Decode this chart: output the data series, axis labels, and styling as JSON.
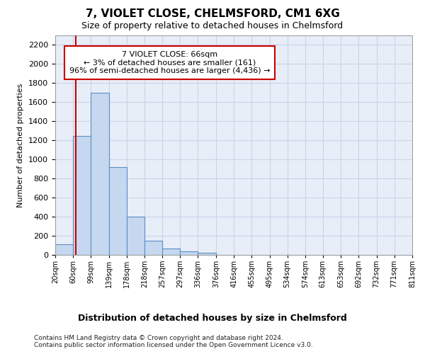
{
  "title": "7, VIOLET CLOSE, CHELMSFORD, CM1 6XG",
  "subtitle": "Size of property relative to detached houses in Chelmsford",
  "xlabel_bottom": "Distribution of detached houses by size in Chelmsford",
  "ylabel": "Number of detached properties",
  "footer_line1": "Contains HM Land Registry data © Crown copyright and database right 2024.",
  "footer_line2": "Contains public sector information licensed under the Open Government Licence v3.0.",
  "bin_edges": [
    20,
    60,
    99,
    139,
    178,
    218,
    257,
    297,
    336,
    376,
    416,
    455,
    495,
    534,
    574,
    613,
    653,
    692,
    732,
    771,
    811
  ],
  "bar_heights": [
    115,
    1250,
    1700,
    920,
    400,
    150,
    65,
    35,
    25,
    0,
    0,
    0,
    0,
    0,
    0,
    0,
    0,
    0,
    0,
    0
  ],
  "bar_color": "#c5d8ef",
  "bar_edge_color": "#5b8ec4",
  "grid_color": "#c8d4e8",
  "bg_color": "#e8eef8",
  "property_size": 66,
  "red_line_color": "#cc0000",
  "annotation_line1": "7 VIOLET CLOSE: 66sqm",
  "annotation_line2": "← 3% of detached houses are smaller (161)",
  "annotation_line3": "96% of semi-detached houses are larger (4,436) →",
  "annotation_box_color": "#ffffff",
  "annotation_box_edge": "#cc0000",
  "ylim": [
    0,
    2300
  ],
  "yticks": [
    0,
    200,
    400,
    600,
    800,
    1000,
    1200,
    1400,
    1600,
    1800,
    2000,
    2200
  ],
  "title_fontsize": 11,
  "subtitle_fontsize": 9,
  "ylabel_fontsize": 8,
  "tick_label_fontsize": 7,
  "annotation_fontsize": 8,
  "xlabel_fontsize": 9,
  "tick_labels": [
    "20sqm",
    "60sqm",
    "99sqm",
    "139sqm",
    "178sqm",
    "218sqm",
    "257sqm",
    "297sqm",
    "336sqm",
    "376sqm",
    "416sqm",
    "455sqm",
    "495sqm",
    "534sqm",
    "574sqm",
    "613sqm",
    "653sqm",
    "692sqm",
    "732sqm",
    "771sqm",
    "811sqm"
  ]
}
